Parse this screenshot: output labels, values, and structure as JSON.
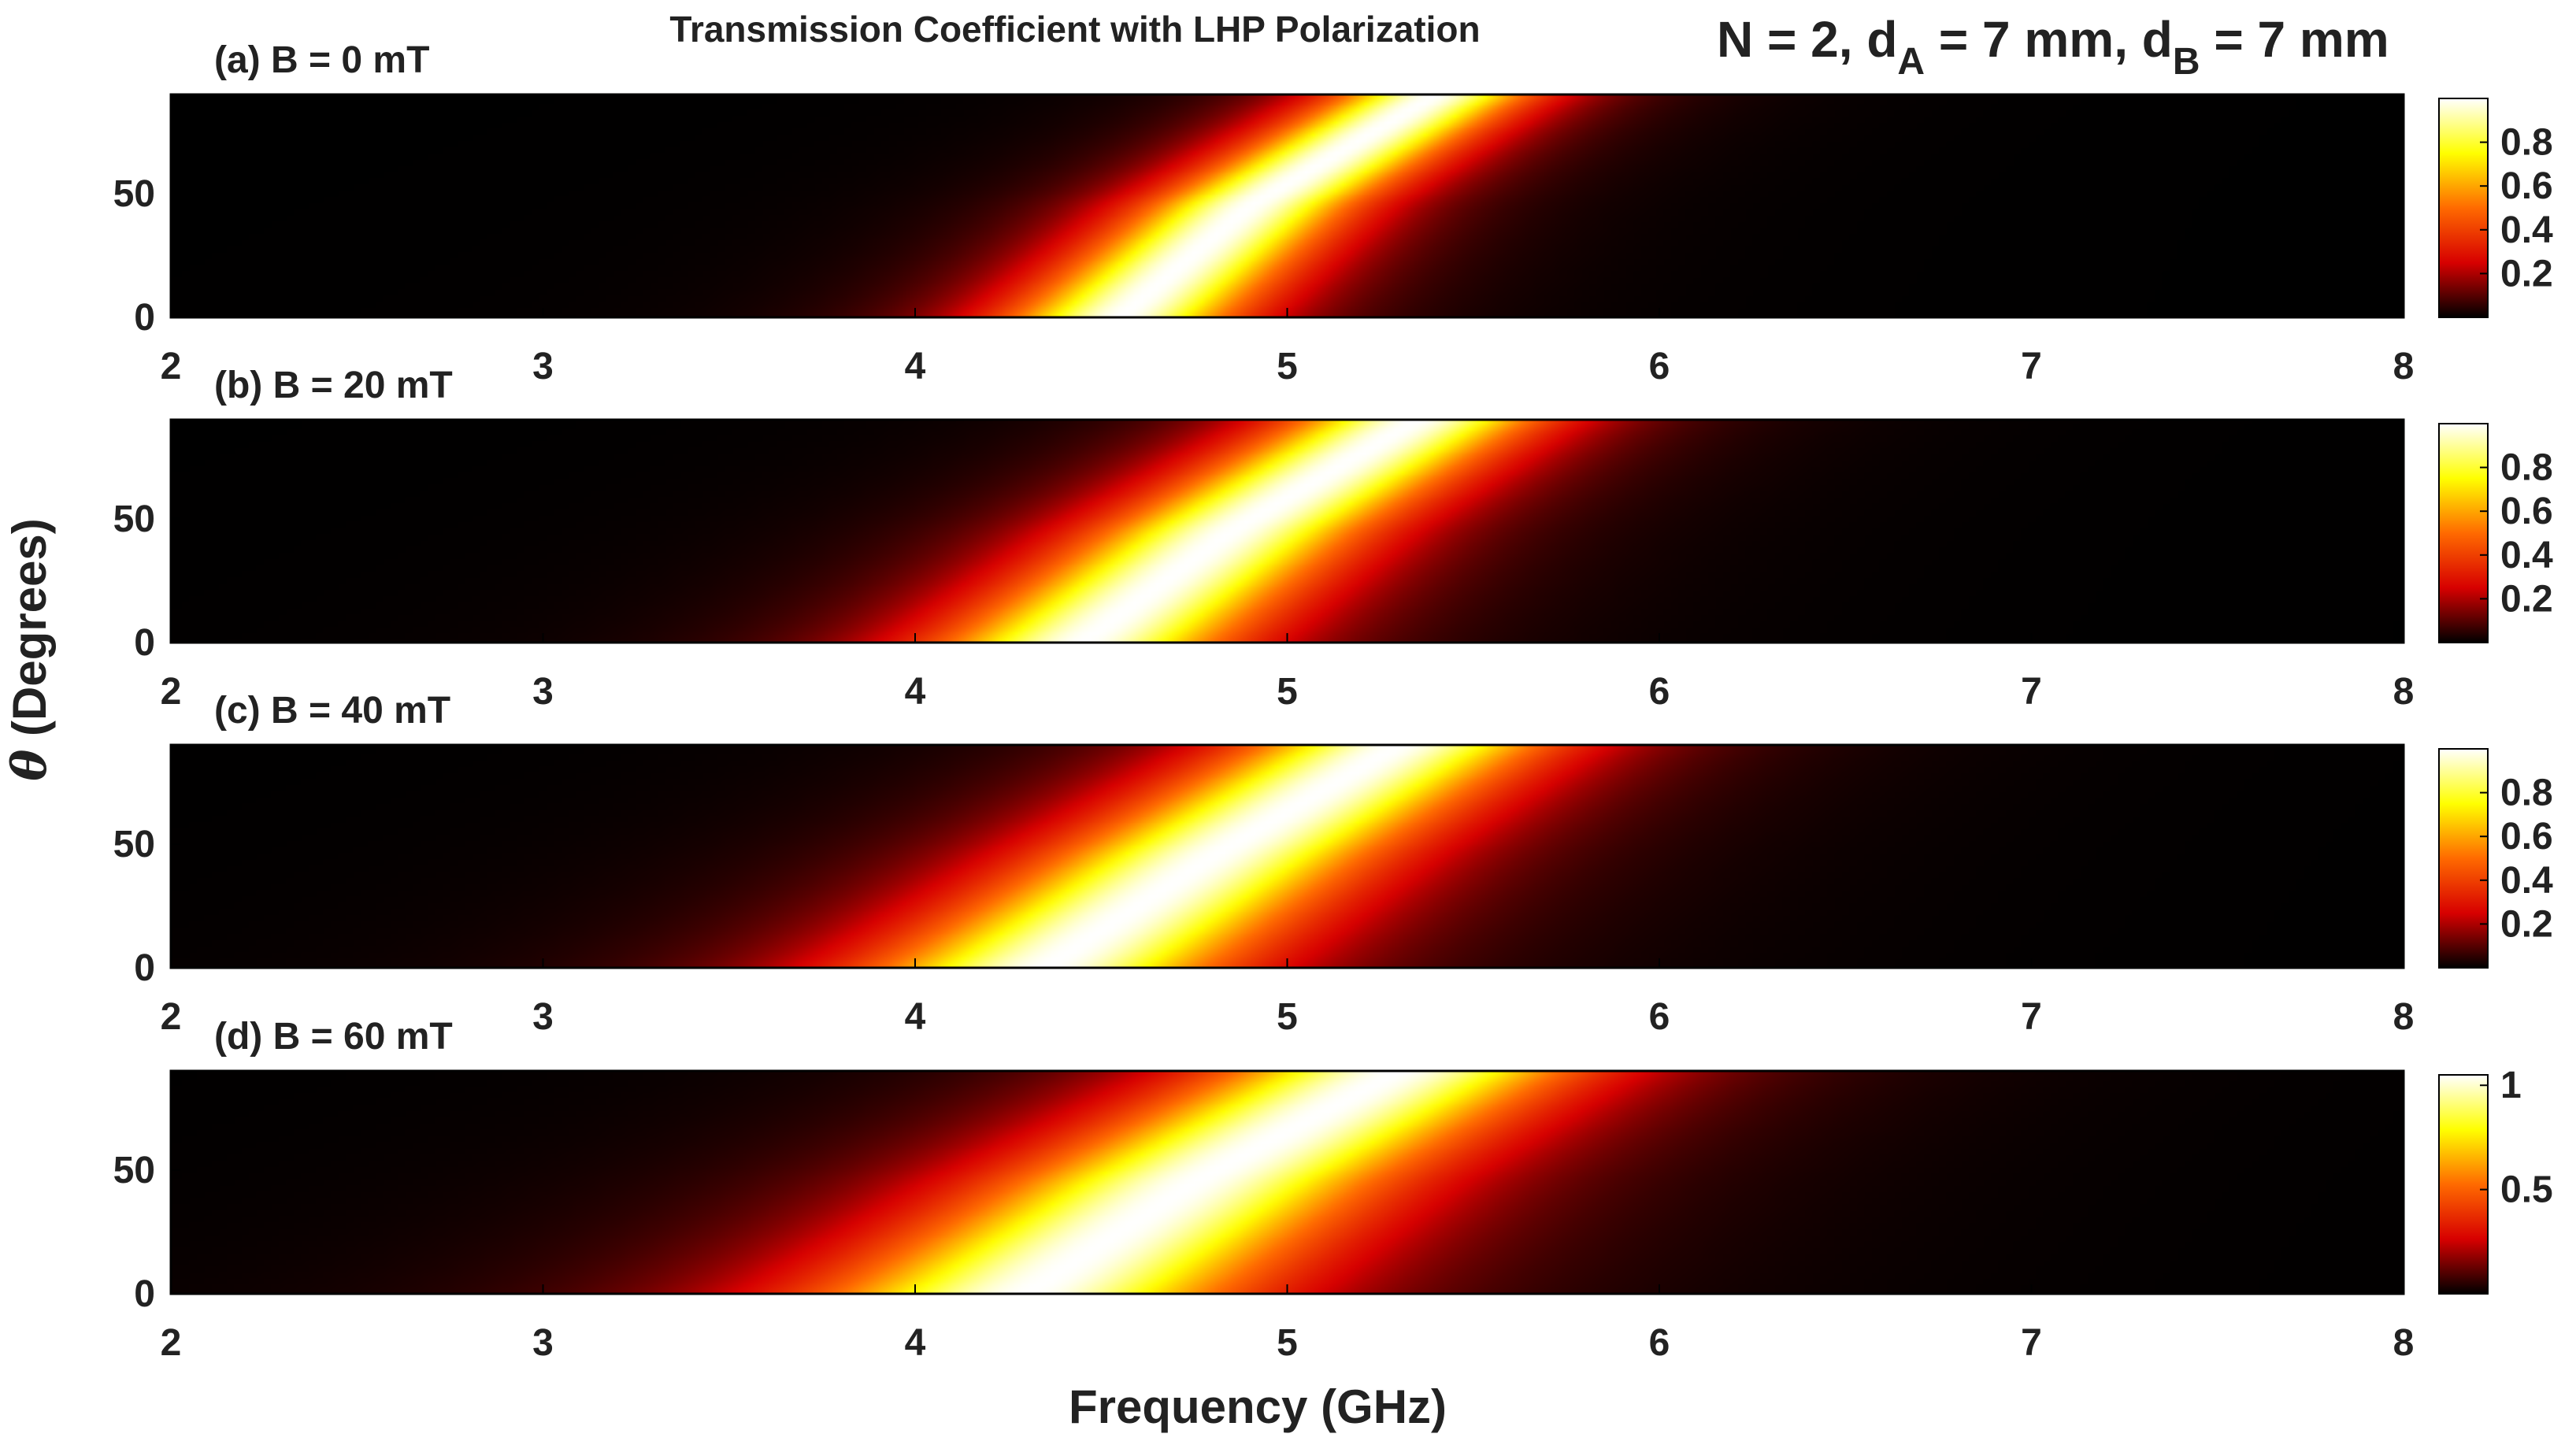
{
  "figure": {
    "title": "Transmission Coefficient with LHP Polarization",
    "params": {
      "prefix": "N = 2, d",
      "sub_a": "A",
      "mid": " = 7 mm, d",
      "sub_b": "B",
      "suffix": " = 7 mm"
    },
    "xlabel": "Frequency (GHz)",
    "ylabel_symbol": "θ",
    "ylabel": "(Degrees)"
  },
  "colors": {
    "colormap": "hot",
    "stops": [
      "#000000",
      "#d70000",
      "#ff6a00",
      "#ffff00",
      "#ffffff"
    ],
    "text": "#222222",
    "axes_frame": "#000000"
  },
  "chart_data": [
    {
      "type": "heatmap",
      "label": "(a) B = 0 mT",
      "B_mT": 0,
      "x_range": [
        2,
        8
      ],
      "y_range": [
        0,
        90
      ],
      "x_ticks": [
        "2",
        "3",
        "4",
        "5",
        "6",
        "7",
        "8"
      ],
      "y_ticks": [
        "0",
        "50"
      ],
      "colorbar": {
        "range": [
          0,
          1
        ],
        "ticks": [
          "0.2",
          "0.4",
          "0.6",
          "0.8"
        ]
      },
      "ridge_freq_GHz": [
        {
          "theta": 0,
          "f": 4.55
        },
        {
          "theta": 45,
          "f": 4.9
        },
        {
          "theta": 90,
          "f": 5.4
        }
      ],
      "peak": 1.0,
      "width_GHz": 0.55
    },
    {
      "type": "heatmap",
      "label": "(b) B = 20 mT",
      "B_mT": 20,
      "x_range": [
        2,
        8
      ],
      "y_range": [
        0,
        90
      ],
      "x_ticks": [
        "2",
        "3",
        "4",
        "5",
        "6",
        "7",
        "8"
      ],
      "y_ticks": [
        "0",
        "50"
      ],
      "colorbar": {
        "range": [
          0,
          1
        ],
        "ticks": [
          "0.2",
          "0.4",
          "0.6",
          "0.8"
        ]
      },
      "ridge_freq_GHz": [
        {
          "theta": 0,
          "f": 4.45
        },
        {
          "theta": 45,
          "f": 4.85
        },
        {
          "theta": 90,
          "f": 5.35
        }
      ],
      "peak": 1.0,
      "width_GHz": 0.7
    },
    {
      "type": "heatmap",
      "label": "(c) B = 40 mT",
      "B_mT": 40,
      "x_range": [
        2,
        8
      ],
      "y_range": [
        0,
        90
      ],
      "x_ticks": [
        "2",
        "3",
        "4",
        "5",
        "6",
        "7",
        "8"
      ],
      "y_ticks": [
        "0",
        "50"
      ],
      "colorbar": {
        "range": [
          0,
          1
        ],
        "ticks": [
          "0.2",
          "0.4",
          "0.6",
          "0.8"
        ]
      },
      "ridge_freq_GHz": [
        {
          "theta": 0,
          "f": 4.35
        },
        {
          "theta": 45,
          "f": 4.8
        },
        {
          "theta": 90,
          "f": 5.3
        }
      ],
      "peak": 1.0,
      "width_GHz": 0.85
    },
    {
      "type": "heatmap",
      "label": "(d) B = 60 mT",
      "B_mT": 60,
      "x_range": [
        2,
        8
      ],
      "y_range": [
        0,
        90
      ],
      "x_ticks": [
        "2",
        "3",
        "4",
        "5",
        "6",
        "7",
        "8"
      ],
      "y_ticks": [
        "0",
        "50"
      ],
      "colorbar": {
        "range": [
          0,
          1.05
        ],
        "ticks": [
          "0.5",
          "1"
        ]
      },
      "ridge_freq_GHz": [
        {
          "theta": 0,
          "f": 4.3
        },
        {
          "theta": 45,
          "f": 4.75
        },
        {
          "theta": 90,
          "f": 5.3
        }
      ],
      "peak": 1.0,
      "width_GHz": 1.0
    }
  ]
}
